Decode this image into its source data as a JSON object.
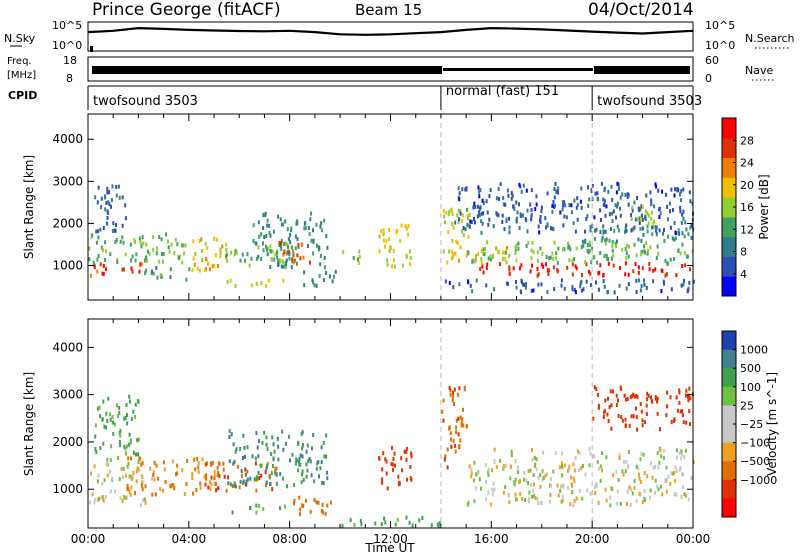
{
  "header": {
    "station": "Prince George (fitACF)",
    "beam": "Beam 15",
    "date": "04/Oct/2014"
  },
  "noise_panel": {
    "left_label": "N.Sky",
    "left_ticks": [
      "10^5",
      "10^0"
    ],
    "right_label": "N.Search",
    "right_ticks": [
      "10^5",
      "10^0"
    ]
  },
  "freq_panel": {
    "left_label_line1": "Freq.",
    "left_label_line2": "[MHz]",
    "left_ticks": [
      "18",
      "8"
    ],
    "right_label": "Nave",
    "right_ticks": [
      "60",
      "0"
    ]
  },
  "cpid": {
    "label": "CPID",
    "segments": [
      {
        "name": "twofsound 3503",
        "start_hour": 0,
        "end_hour": 14
      },
      {
        "name": "normal (fast) 151",
        "start_hour": 14,
        "end_hour": 20
      },
      {
        "name": "twofsound 3503",
        "start_hour": 20,
        "end_hour": 24
      }
    ]
  },
  "colors": {
    "power_scale": [
      "#0000ff",
      "#2e4fb6",
      "#2f7d8a",
      "#3fa060",
      "#8fcf30",
      "#f0c000",
      "#f08000",
      "#e03000",
      "#ff0000"
    ],
    "velocity_scale": [
      "#2040b0",
      "#3f7f8f",
      "#3fa050",
      "#70c040",
      "#c8c8c8",
      "#c8c8c8",
      "#f0a020",
      "#e07000",
      "#e03000",
      "#ff0000"
    ]
  },
  "chart_data": [
    {
      "type": "heatmap",
      "panel": "power",
      "title": "",
      "xlabel": "",
      "ylabel": "Slant Range [km]",
      "xlim": [
        0,
        24
      ],
      "ylim": [
        180,
        4600
      ],
      "x_tick_labels": [
        "00:00",
        "04:00",
        "08:00",
        "12:00",
        "16:00",
        "20:00",
        "00:00"
      ],
      "y_ticks": [
        1000,
        2000,
        3000,
        4000
      ],
      "colorbar": {
        "label": "Power [dB]",
        "ticks": [
          4,
          8,
          12,
          16,
          20,
          24,
          28
        ],
        "range": [
          0,
          32
        ]
      },
      "bands": [
        {
          "x0": 0.0,
          "x1": 2.2,
          "y0": 800,
          "y1": 1100,
          "value": 27
        },
        {
          "x0": 0.0,
          "x1": 4.0,
          "y0": 1100,
          "y1": 1800,
          "value": 14
        },
        {
          "x0": 0.2,
          "x1": 1.5,
          "y0": 1800,
          "y1": 3000,
          "value": 7
        },
        {
          "x0": 2.2,
          "x1": 4.0,
          "y0": 700,
          "y1": 1000,
          "value": 12
        },
        {
          "x0": 4.0,
          "x1": 5.5,
          "y0": 900,
          "y1": 1700,
          "value": 20
        },
        {
          "x0": 5.2,
          "x1": 8.0,
          "y0": 1000,
          "y1": 1600,
          "value": 15
        },
        {
          "x0": 6.5,
          "x1": 9.5,
          "y0": 1000,
          "y1": 2300,
          "value": 11
        },
        {
          "x0": 7.5,
          "x1": 8.8,
          "y0": 1100,
          "y1": 1600,
          "value": 26
        },
        {
          "x0": 5.5,
          "x1": 8.0,
          "y0": 550,
          "y1": 700,
          "value": 18
        },
        {
          "x0": 8.5,
          "x1": 9.8,
          "y0": 500,
          "y1": 900,
          "value": 9
        },
        {
          "x0": 10.0,
          "x1": 10.8,
          "y0": 1100,
          "y1": 1400,
          "value": 16
        },
        {
          "x0": 11.5,
          "x1": 12.8,
          "y0": 1000,
          "y1": 2000,
          "value": 18
        },
        {
          "x0": 14.0,
          "x1": 15.2,
          "y0": 1300,
          "y1": 2400,
          "value": 17
        },
        {
          "x0": 14.2,
          "x1": 17.0,
          "y0": 1100,
          "y1": 1500,
          "value": 19
        },
        {
          "x0": 15.5,
          "x1": 24.0,
          "y0": 800,
          "y1": 1100,
          "value": 29
        },
        {
          "x0": 15.0,
          "x1": 24.0,
          "y0": 1100,
          "y1": 1600,
          "value": 14
        },
        {
          "x0": 19.5,
          "x1": 24.0,
          "y0": 1600,
          "y1": 2000,
          "value": 11
        },
        {
          "x0": 14.5,
          "x1": 24.0,
          "y0": 1800,
          "y1": 3000,
          "value": 6
        },
        {
          "x0": 21.5,
          "x1": 22.5,
          "y0": 2000,
          "y1": 2500,
          "value": 18
        },
        {
          "x0": 14.0,
          "x1": 24.0,
          "y0": 400,
          "y1": 700,
          "value": 6
        }
      ]
    },
    {
      "type": "heatmap",
      "panel": "velocity",
      "title": "",
      "xlabel": "Time UT",
      "ylabel": "Slant Range [km]",
      "xlim": [
        0,
        24
      ],
      "ylim": [
        180,
        4600
      ],
      "x_tick_labels": [
        "00:00",
        "04:00",
        "08:00",
        "12:00",
        "16:00",
        "20:00",
        "00:00"
      ],
      "y_ticks": [
        1000,
        2000,
        3000,
        4000
      ],
      "colorbar": {
        "label": "Velocity [m s^-1]",
        "ticks": [
          "1000",
          "500",
          "100",
          "25",
          "−25",
          "−100",
          "−500",
          "−1000"
        ]
      },
      "bands": [
        {
          "x0": 0.0,
          "x1": 2.5,
          "y0": 700,
          "y1": 1600,
          "value": 0
        },
        {
          "x0": 0.2,
          "x1": 2.0,
          "y0": 1600,
          "y1": 3000,
          "value": 120
        },
        {
          "x0": 1.5,
          "x1": 5.0,
          "y0": 900,
          "y1": 1700,
          "value": -120
        },
        {
          "x0": 4.5,
          "x1": 7.5,
          "y0": 1000,
          "y1": 1600,
          "value": -300
        },
        {
          "x0": 5.5,
          "x1": 9.5,
          "y0": 1100,
          "y1": 2300,
          "value": 300
        },
        {
          "x0": 5.5,
          "x1": 8.0,
          "y0": 550,
          "y1": 700,
          "value": 120
        },
        {
          "x0": 8.0,
          "x1": 9.8,
          "y0": 500,
          "y1": 900,
          "value": -200
        },
        {
          "x0": 11.5,
          "x1": 12.8,
          "y0": 1000,
          "y1": 2000,
          "value": -400
        },
        {
          "x0": 14.0,
          "x1": 15.0,
          "y0": 1500,
          "y1": 3200,
          "value": -300
        },
        {
          "x0": 15.0,
          "x1": 24.0,
          "y0": 700,
          "y1": 1900,
          "value": 0
        },
        {
          "x0": 20.0,
          "x1": 24.0,
          "y0": 2300,
          "y1": 3200,
          "value": -400
        },
        {
          "x0": 10.0,
          "x1": 14.0,
          "y0": 250,
          "y1": 450,
          "value": 150
        }
      ]
    }
  ],
  "noise_series": {
    "x_hours": [
      0,
      1,
      2,
      3,
      4,
      5,
      6,
      7,
      8,
      9,
      10,
      11,
      12,
      13,
      14,
      15,
      16,
      17,
      18,
      19,
      20,
      21,
      22,
      23,
      24
    ],
    "level_frac": [
      0.7,
      0.75,
      0.85,
      0.82,
      0.78,
      0.76,
      0.74,
      0.73,
      0.75,
      0.7,
      0.62,
      0.6,
      0.62,
      0.66,
      0.7,
      0.78,
      0.85,
      0.83,
      0.8,
      0.76,
      0.72,
      0.68,
      0.65,
      0.7,
      0.75
    ]
  }
}
